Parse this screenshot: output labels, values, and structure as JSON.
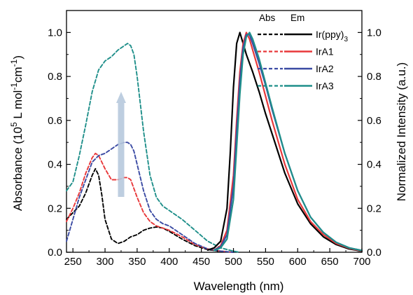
{
  "chart_data": {
    "type": "line",
    "xlabel": "Wavelength (nm)",
    "ylabel_left": "Absorbance (10^5 L mol^-1 cm^-1)",
    "ylabel_right": "Normalized Intensity (a.u.)",
    "xlim": [
      240,
      700
    ],
    "ylim": [
      0,
      1.1
    ],
    "x_ticks": [
      250,
      300,
      350,
      400,
      450,
      500,
      550,
      600,
      650,
      700
    ],
    "y_ticks": [
      0.0,
      0.2,
      0.4,
      0.6,
      0.8,
      1.0
    ],
    "y_tick_labels": [
      "0.0",
      "0.2",
      "0.4",
      "0.6",
      "0.8",
      "1.0"
    ],
    "legend": {
      "position": "top-right",
      "headers": [
        "Abs",
        "Em"
      ],
      "entries": [
        "Ir(ppy)3",
        "IrA1",
        "IrA2",
        "IrA3"
      ]
    },
    "annotation": "arrow pointing up near 320 nm",
    "series": [
      {
        "name": "Ir(ppy)3",
        "kind": "absorption",
        "color": "#000000",
        "x": [
          240,
          250,
          260,
          270,
          280,
          285,
          290,
          295,
          300,
          310,
          320,
          330,
          340,
          350,
          360,
          370,
          380,
          390,
          400,
          420,
          440,
          460,
          480,
          500
        ],
        "y": [
          0.15,
          0.18,
          0.21,
          0.27,
          0.35,
          0.38,
          0.35,
          0.26,
          0.15,
          0.06,
          0.04,
          0.05,
          0.07,
          0.08,
          0.1,
          0.11,
          0.115,
          0.11,
          0.095,
          0.06,
          0.03,
          0.012,
          0.004,
          0.0
        ]
      },
      {
        "name": "IrA1",
        "kind": "absorption",
        "color": "#e8383a",
        "x": [
          240,
          250,
          260,
          270,
          280,
          285,
          290,
          300,
          310,
          320,
          330,
          335,
          340,
          350,
          360,
          370,
          380,
          390,
          400,
          420,
          440,
          460,
          480,
          500
        ],
        "y": [
          0.14,
          0.2,
          0.27,
          0.36,
          0.43,
          0.45,
          0.44,
          0.38,
          0.33,
          0.33,
          0.34,
          0.34,
          0.33,
          0.25,
          0.18,
          0.14,
          0.12,
          0.11,
          0.1,
          0.07,
          0.035,
          0.015,
          0.005,
          0.0
        ]
      },
      {
        "name": "IrA2",
        "kind": "absorption",
        "color": "#3a4aa3",
        "x": [
          240,
          250,
          260,
          270,
          280,
          290,
          300,
          310,
          320,
          330,
          335,
          340,
          345,
          350,
          360,
          370,
          380,
          390,
          400,
          420,
          440,
          460,
          480,
          500
        ],
        "y": [
          0.05,
          0.15,
          0.25,
          0.33,
          0.41,
          0.44,
          0.45,
          0.47,
          0.49,
          0.5,
          0.5,
          0.49,
          0.46,
          0.4,
          0.28,
          0.19,
          0.15,
          0.13,
          0.12,
          0.08,
          0.04,
          0.015,
          0.005,
          0.0
        ]
      },
      {
        "name": "IrA3",
        "kind": "absorption",
        "color": "#1f8f8a",
        "x": [
          240,
          250,
          260,
          270,
          280,
          290,
          300,
          310,
          320,
          330,
          335,
          340,
          345,
          350,
          360,
          370,
          380,
          390,
          400,
          420,
          440,
          460,
          480,
          500,
          510
        ],
        "y": [
          0.28,
          0.32,
          0.44,
          0.58,
          0.73,
          0.83,
          0.87,
          0.89,
          0.92,
          0.94,
          0.95,
          0.94,
          0.9,
          0.8,
          0.55,
          0.35,
          0.25,
          0.21,
          0.19,
          0.15,
          0.1,
          0.05,
          0.02,
          0.005,
          0.0
        ]
      },
      {
        "name": "Ir(ppy)3",
        "kind": "emission",
        "color": "#000000",
        "x": [
          460,
          470,
          480,
          490,
          495,
          500,
          505,
          510,
          515,
          520,
          530,
          540,
          550,
          560,
          580,
          600,
          620,
          640,
          660,
          680,
          700
        ],
        "y": [
          0.01,
          0.02,
          0.05,
          0.2,
          0.45,
          0.75,
          0.95,
          1.0,
          0.95,
          0.9,
          0.82,
          0.73,
          0.63,
          0.54,
          0.36,
          0.22,
          0.13,
          0.07,
          0.035,
          0.015,
          0.005
        ]
      },
      {
        "name": "IrA1",
        "kind": "emission",
        "color": "#e8383a",
        "x": [
          470,
          480,
          490,
          500,
          505,
          510,
          515,
          520,
          525,
          530,
          540,
          550,
          560,
          580,
          600,
          620,
          640,
          660,
          680,
          700
        ],
        "y": [
          0.01,
          0.03,
          0.1,
          0.35,
          0.6,
          0.82,
          0.95,
          1.0,
          0.97,
          0.92,
          0.82,
          0.71,
          0.6,
          0.4,
          0.24,
          0.14,
          0.08,
          0.04,
          0.018,
          0.006
        ]
      },
      {
        "name": "IrA2",
        "kind": "emission",
        "color": "#3a4aa3",
        "x": [
          470,
          480,
          490,
          500,
          505,
          510,
          515,
          520,
          525,
          530,
          540,
          550,
          560,
          580,
          600,
          620,
          640,
          660,
          680,
          700
        ],
        "y": [
          0.01,
          0.025,
          0.08,
          0.3,
          0.55,
          0.78,
          0.93,
          0.99,
          0.99,
          0.95,
          0.86,
          0.76,
          0.65,
          0.45,
          0.28,
          0.16,
          0.09,
          0.045,
          0.02,
          0.008
        ]
      },
      {
        "name": "IrA3",
        "kind": "emission",
        "color": "#1f8f8a",
        "x": [
          470,
          480,
          490,
          500,
          505,
          510,
          515,
          520,
          525,
          530,
          540,
          550,
          560,
          580,
          600,
          620,
          640,
          660,
          680,
          700
        ],
        "y": [
          0.008,
          0.02,
          0.06,
          0.24,
          0.48,
          0.72,
          0.9,
          0.98,
          1.0,
          0.97,
          0.88,
          0.77,
          0.66,
          0.45,
          0.28,
          0.16,
          0.09,
          0.045,
          0.02,
          0.008
        ]
      }
    ]
  }
}
